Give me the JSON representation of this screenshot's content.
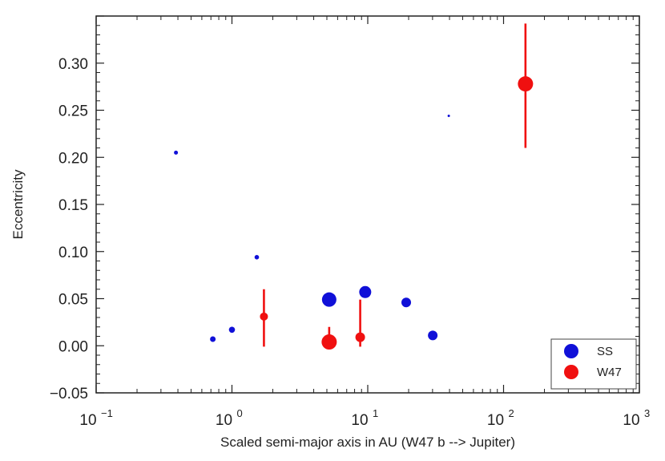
{
  "chart_data": {
    "type": "scatter",
    "title": "",
    "xlabel": "Scaled semi-major axis in AU (W47 b --> Jupiter)",
    "ylabel": "Eccentricity",
    "x_scale": "log",
    "xlim": [
      0.1,
      1000
    ],
    "ylim": [
      -0.05,
      0.35
    ],
    "x_tick_labels": [
      {
        "value": 0.1,
        "base": "10",
        "exp": "−1"
      },
      {
        "value": 1,
        "base": "10",
        "exp": "0"
      },
      {
        "value": 10,
        "base": "10",
        "exp": "1"
      },
      {
        "value": 100,
        "base": "10",
        "exp": "2"
      },
      {
        "value": 1000,
        "base": "10",
        "exp": "3"
      }
    ],
    "y_ticks": [
      -0.05,
      0.0,
      0.05,
      0.1,
      0.15,
      0.2,
      0.25,
      0.3
    ],
    "y_tick_labels": [
      "−0.05",
      "0.00",
      "0.05",
      "0.10",
      "0.15",
      "0.20",
      "0.25",
      "0.30"
    ],
    "grid": false,
    "legend_position": "bottom-right",
    "series": [
      {
        "name": "SS",
        "color": "#1010d8",
        "points": [
          {
            "x": 0.387,
            "y": 0.205,
            "r": 2.5
          },
          {
            "x": 0.723,
            "y": 0.007,
            "r": 3.5
          },
          {
            "x": 1.0,
            "y": 0.017,
            "r": 3.8
          },
          {
            "x": 1.524,
            "y": 0.094,
            "r": 2.8
          },
          {
            "x": 5.2,
            "y": 0.049,
            "r": 9
          },
          {
            "x": 9.58,
            "y": 0.057,
            "r": 7.5
          },
          {
            "x": 19.2,
            "y": 0.046,
            "r": 6
          },
          {
            "x": 30.1,
            "y": 0.011,
            "r": 6
          },
          {
            "x": 39.5,
            "y": 0.244,
            "r": 1.5
          }
        ]
      },
      {
        "name": "W47",
        "color": "#f01010",
        "points": [
          {
            "x": 1.72,
            "y": 0.031,
            "r": 5,
            "y_lo": -0.001,
            "y_hi": 0.06
          },
          {
            "x": 5.2,
            "y": 0.004,
            "r": 9.5,
            "y_lo": 0.0,
            "y_hi": 0.02
          },
          {
            "x": 8.8,
            "y": 0.009,
            "r": 6,
            "y_lo": -0.001,
            "y_hi": 0.049
          },
          {
            "x": 145,
            "y": 0.278,
            "r": 9.5,
            "y_lo": 0.21,
            "y_hi": 0.342
          }
        ]
      }
    ],
    "legend": [
      {
        "label": "SS",
        "color": "#1010d8"
      },
      {
        "label": "W47",
        "color": "#f01010"
      }
    ]
  }
}
